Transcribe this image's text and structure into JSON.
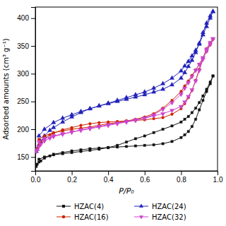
{
  "chart_data": {
    "type": "line",
    "xlabel": "P/P₀",
    "ylabel": "Adsorbed amounts (cm³ g⁻¹)",
    "xlim": [
      0.0,
      1.0
    ],
    "ylim": [
      125,
      420
    ],
    "xticks": [
      {
        "value": 0.0,
        "label": "0.0"
      },
      0.2,
      0.4,
      0.6,
      0.8,
      {
        "value": 1.0,
        "label": "1.0"
      }
    ],
    "yticks": [
      150,
      200,
      250,
      300,
      350,
      400
    ],
    "legend": "bottom",
    "x": [
      0.005,
      0.01,
      0.02,
      0.03,
      0.05,
      0.08,
      0.1,
      0.15,
      0.2,
      0.25,
      0.3,
      0.35,
      0.4,
      0.45,
      0.5,
      0.55,
      0.6,
      0.65,
      0.7,
      0.75,
      0.8,
      0.82,
      0.84,
      0.86,
      0.88,
      0.9,
      0.92,
      0.94,
      0.96,
      0.975,
      0.975,
      0.96,
      0.94,
      0.92,
      0.9,
      0.88,
      0.86,
      0.84,
      0.82,
      0.8,
      0.75,
      0.7,
      0.65,
      0.6,
      0.55,
      0.5,
      0.45,
      0.4,
      0.35,
      0.3,
      0.25,
      0.2,
      0.15,
      0.1,
      0.05,
      0.02
    ],
    "series": [
      {
        "name": "HZAC(4)",
        "color": "#111111",
        "marker": "square",
        "values": [
          133,
          137,
          141,
          143,
          148,
          152,
          155,
          158,
          161,
          163,
          165,
          166,
          167,
          168,
          169,
          170,
          171,
          172,
          174,
          178,
          185,
          190,
          196,
          205,
          218,
          235,
          252,
          268,
          282,
          296,
          296,
          285,
          272,
          260,
          248,
          238,
          230,
          223,
          218,
          213,
          206,
          200,
          194,
          188,
          183,
          177,
          171,
          167,
          164,
          162,
          160,
          158,
          156,
          154,
          150,
          146
        ]
      },
      {
        "name": "HZAC(24)",
        "color": "#2222bb",
        "marker": "triangle-up",
        "values": [
          160,
          164,
          172,
          178,
          188,
          198,
          203,
          213,
          222,
          230,
          237,
          242,
          246,
          250,
          254,
          258,
          262,
          267,
          272,
          280,
          292,
          302,
          313,
          324,
          338,
          355,
          374,
          391,
          404,
          412,
          412,
          400,
          385,
          370,
          353,
          342,
          332,
          322,
          314,
          305,
          292,
          282,
          274,
          267,
          262,
          257,
          252,
          247,
          242,
          237,
          232,
          226,
          220,
          212,
          200,
          188
        ]
      },
      {
        "name": "HZAC(16)",
        "color": "#cc2200",
        "marker": "circle",
        "values": [
          161,
          165,
          172,
          177,
          183,
          190,
          193,
          199,
          203,
          207,
          210,
          212,
          213,
          214,
          215,
          216,
          217,
          219,
          221,
          227,
          237,
          246,
          257,
          270,
          288,
          308,
          328,
          345,
          356,
          362,
          362,
          352,
          340,
          328,
          317,
          307,
          297,
          287,
          278,
          268,
          252,
          238,
          228,
          222,
          218,
          215,
          212,
          210,
          207,
          204,
          202,
          200,
          197,
          194,
          188,
          182
        ]
      },
      {
        "name": "HZAC(32)",
        "color": "#cc44cc",
        "marker": "triangle-down",
        "values": [
          160,
          163,
          169,
          173,
          179,
          184,
          187,
          191,
          195,
          199,
          202,
          205,
          208,
          211,
          214,
          217,
          220,
          224,
          228,
          234,
          241,
          249,
          259,
          271,
          287,
          306,
          326,
          344,
          356,
          363,
          363,
          353,
          341,
          329,
          317,
          306,
          295,
          284,
          274,
          263,
          248,
          236,
          226,
          220,
          216,
          213,
          210,
          207,
          204,
          201,
          198,
          195,
          192,
          188,
          183,
          177
        ]
      }
    ]
  }
}
